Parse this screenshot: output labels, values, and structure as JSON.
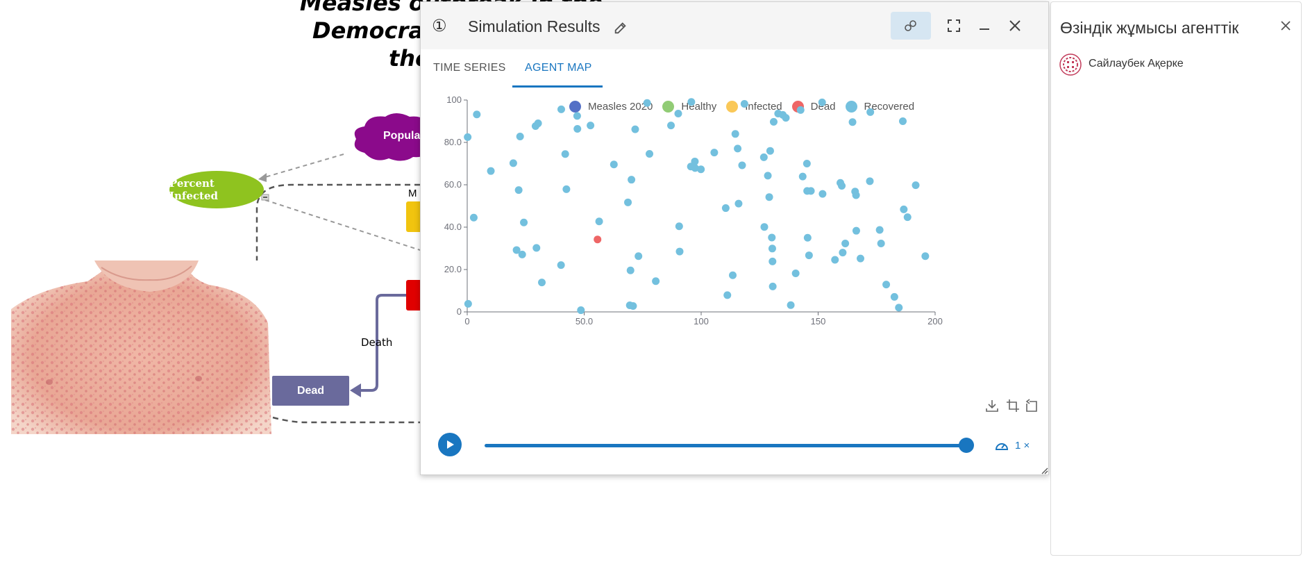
{
  "background": {
    "title_lines": [
      "Measles outbreak in the",
      "Democratic",
      "the"
    ],
    "cloud_label": "Populat",
    "percent_infected_label": "Percent Infected",
    "m_label": "M",
    "death_label": "Death",
    "dead_label": "Dead",
    "photo_description_icon": "child-with-measles-rash-image"
  },
  "window": {
    "number_glyph": "①",
    "title": "Simulation Results",
    "tabs": [
      {
        "label": "TIME SERIES",
        "selected": false
      },
      {
        "label": "AGENT MAP",
        "selected": true
      }
    ],
    "speed_label": "1 ×",
    "icons": [
      "pencil-icon",
      "agents-icon",
      "fullscreen-icon",
      "minimize-icon",
      "close-icon",
      "download-icon",
      "crop-icon",
      "reset-zoom-icon",
      "play-icon",
      "speedometer-icon"
    ]
  },
  "colors": {
    "accent": "#1976c0",
    "measles": "#5470c6",
    "healthy": "#91cc75",
    "infected": "#fac858",
    "dead": "#ee6666",
    "recovered": "#73c0de"
  },
  "chart_data": {
    "type": "scatter",
    "legend": [
      {
        "name": "Measles 2020",
        "color": "#5470c6"
      },
      {
        "name": "Healthy",
        "color": "#91cc75"
      },
      {
        "name": "Infected",
        "color": "#fac858"
      },
      {
        "name": "Dead",
        "color": "#ee6666"
      },
      {
        "name": "Recovered",
        "color": "#73c0de"
      }
    ],
    "xlim": [
      0,
      200
    ],
    "ylim": [
      0,
      100
    ],
    "x_ticks": [
      "0",
      "50.0",
      "100",
      "150",
      "200"
    ],
    "y_ticks": [
      "0",
      "20.0",
      "40.0",
      "60.0",
      "80.0",
      "100"
    ],
    "grid": false,
    "legend_position": "top",
    "series": [
      {
        "name": "Dead",
        "color": "#ee6666",
        "points": [
          [
            55.7,
            34.2
          ]
        ]
      },
      {
        "name": "Recovered",
        "color": "#73c0de",
        "points": [
          [
            0.2,
            82.5
          ],
          [
            0.4,
            3.8
          ],
          [
            2.8,
            44.5
          ],
          [
            4.1,
            93.2
          ],
          [
            10.1,
            66.5
          ],
          [
            19.7,
            70.2
          ],
          [
            21.1,
            29.2
          ],
          [
            22.0,
            57.5
          ],
          [
            22.6,
            82.8
          ],
          [
            23.5,
            27.1
          ],
          [
            24.2,
            42.2
          ],
          [
            29.2,
            87.7
          ],
          [
            29.6,
            30.2
          ],
          [
            30.3,
            89.0
          ],
          [
            31.9,
            13.9
          ],
          [
            40.1,
            22.1
          ],
          [
            40.2,
            95.6
          ],
          [
            41.9,
            74.5
          ],
          [
            42.4,
            57.9
          ],
          [
            47.0,
            92.5
          ],
          [
            47.1,
            86.4
          ],
          [
            48.6,
            0.8
          ],
          [
            52.7,
            88.0
          ],
          [
            56.4,
            42.7
          ],
          [
            62.7,
            69.6
          ],
          [
            68.7,
            51.7
          ],
          [
            69.5,
            3.1
          ],
          [
            69.8,
            19.6
          ],
          [
            70.2,
            62.4
          ],
          [
            70.9,
            2.8
          ],
          [
            71.8,
            86.2
          ],
          [
            73.2,
            26.3
          ],
          [
            76.9,
            98.6
          ],
          [
            77.9,
            74.6
          ],
          [
            80.6,
            14.5
          ],
          [
            87.1,
            88.0
          ],
          [
            90.2,
            93.6
          ],
          [
            90.6,
            40.4
          ],
          [
            90.8,
            28.5
          ],
          [
            95.6,
            68.6
          ],
          [
            95.8,
            99.1
          ],
          [
            97.3,
            71.0
          ],
          [
            97.4,
            67.9
          ],
          [
            99.9,
            67.3
          ],
          [
            105.6,
            75.2
          ],
          [
            110.5,
            49.0
          ],
          [
            111.2,
            7.9
          ],
          [
            113.5,
            17.3
          ],
          [
            114.6,
            84.0
          ],
          [
            115.6,
            77.1
          ],
          [
            116.0,
            51.1
          ],
          [
            117.5,
            69.2
          ],
          [
            118.5,
            98.2
          ],
          [
            126.8,
            73.0
          ],
          [
            127.0,
            40.1
          ],
          [
            128.5,
            64.3
          ],
          [
            129.1,
            54.2
          ],
          [
            129.5,
            76.0
          ],
          [
            130.2,
            35.1
          ],
          [
            130.4,
            29.9
          ],
          [
            130.5,
            23.8
          ],
          [
            130.6,
            12.0
          ],
          [
            131.0,
            89.7
          ],
          [
            132.9,
            93.6
          ],
          [
            134.9,
            93.0
          ],
          [
            136.2,
            91.6
          ],
          [
            138.3,
            3.2
          ],
          [
            140.4,
            18.2
          ],
          [
            142.5,
            95.3
          ],
          [
            143.4,
            63.9
          ],
          [
            145.2,
            70.0
          ],
          [
            145.3,
            57.1
          ],
          [
            145.5,
            35.0
          ],
          [
            146.1,
            26.7
          ],
          [
            146.9,
            57.1
          ],
          [
            151.7,
            98.9
          ],
          [
            151.9,
            55.7
          ],
          [
            157.2,
            24.6
          ],
          [
            159.5,
            60.9
          ],
          [
            160.1,
            59.5
          ],
          [
            160.5,
            28.0
          ],
          [
            161.6,
            32.3
          ],
          [
            164.7,
            89.6
          ],
          [
            165.8,
            56.8
          ],
          [
            166.2,
            55.1
          ],
          [
            166.3,
            38.3
          ],
          [
            168.1,
            25.2
          ],
          [
            172.1,
            61.7
          ],
          [
            172.3,
            94.3
          ],
          [
            176.3,
            38.7
          ],
          [
            176.9,
            32.3
          ],
          [
            179.1,
            12.9
          ],
          [
            182.6,
            7.1
          ],
          [
            184.5,
            2.0
          ],
          [
            186.2,
            90.0
          ],
          [
            186.6,
            48.4
          ],
          [
            188.2,
            44.7
          ],
          [
            191.7,
            59.8
          ],
          [
            195.8,
            26.3
          ]
        ]
      }
    ]
  },
  "panel": {
    "title": "Өзіндік жұмысы агенттік",
    "agent_name": "Сайлаубек Ақерке"
  }
}
